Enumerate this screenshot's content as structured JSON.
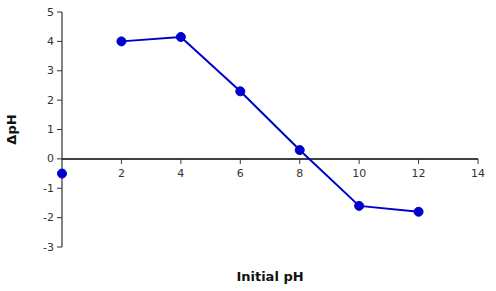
{
  "chart_data": {
    "type": "line",
    "xlabel": "Initial pH",
    "ylabel": "ΔpH",
    "x": [
      2,
      4,
      6,
      8,
      10,
      12
    ],
    "series": [
      {
        "type": "line",
        "color": "#0000cc",
        "marker": "circle",
        "values": [
          4.0,
          4.15,
          2.3,
          0.3,
          -1.6,
          -1.8
        ]
      },
      {
        "type": "scatter",
        "color": "#0000cc",
        "marker": "circle",
        "x": [
          0
        ],
        "values": [
          -0.5
        ]
      }
    ],
    "xlim": [
      0,
      14
    ],
    "ylim": [
      -3,
      5
    ],
    "xticks": [
      2,
      4,
      6,
      8,
      10,
      12,
      14
    ],
    "yticks": [
      -3,
      -2,
      -1,
      0,
      1,
      2,
      3,
      4,
      5
    ],
    "grid": false
  }
}
